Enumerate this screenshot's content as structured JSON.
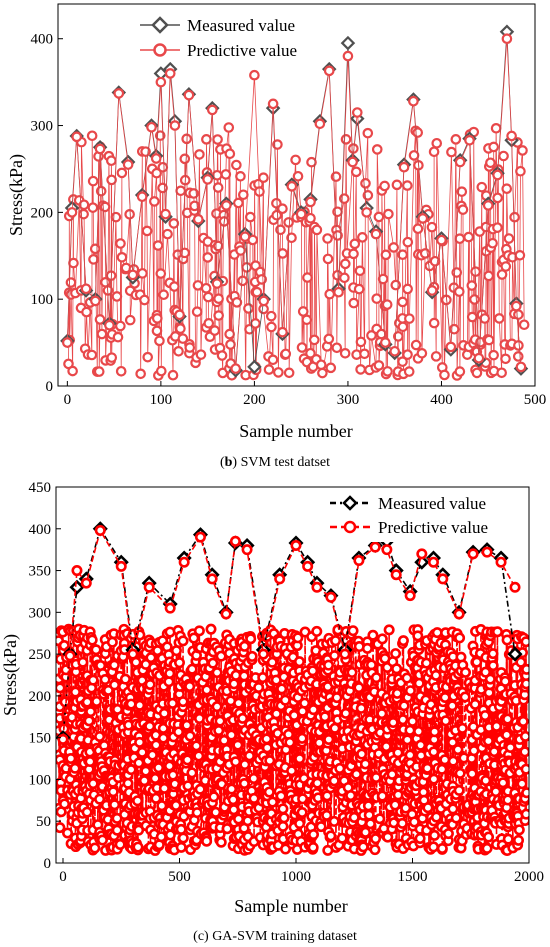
{
  "colors": {
    "measured_top": "#505050",
    "predictive_top": "#e8484a",
    "measured_bottom": "#000000",
    "predictive_bottom": "#ff0000"
  },
  "chart_data": [
    {
      "type": "line",
      "caption_prefix": "(",
      "caption_letter": "b",
      "caption_suffix": ") SVM test datset",
      "xlabel": "Sample number",
      "ylabel": "Stress(kPa)",
      "xlim": [
        -10,
        500
      ],
      "ylim": [
        0,
        440
      ],
      "xticks": [
        0,
        100,
        200,
        300,
        400,
        500
      ],
      "yticks": [
        0,
        100,
        200,
        300,
        400
      ],
      "legend_position": "top-left",
      "series": [
        {
          "name": "Measured value",
          "marker": "diamond",
          "x": [
            0,
            5,
            10,
            20,
            30,
            35,
            45,
            55,
            65,
            70,
            80,
            90,
            95,
            100,
            105,
            110,
            115,
            120,
            130,
            140,
            150,
            155,
            160,
            170,
            180,
            190,
            200,
            210,
            220,
            230,
            240,
            250,
            260,
            270,
            280,
            290,
            300,
            305,
            310,
            320,
            330,
            340,
            350,
            360,
            370,
            380,
            390,
            400,
            410,
            420,
            430,
            440,
            450,
            460,
            470,
            475,
            480,
            485
          ],
          "values": [
            52,
            205,
            288,
            110,
            100,
            275,
            72,
            338,
            258,
            125,
            220,
            300,
            265,
            360,
            195,
            365,
            305,
            80,
            336,
            190,
            240,
            320,
            120,
            210,
            18,
            175,
            22,
            100,
            320,
            60,
            232,
            200,
            215,
            305,
            365,
            112,
            395,
            260,
            308,
            205,
            178,
            48,
            38,
            255,
            330,
            195,
            108,
            170,
            42,
            260,
            285,
            30,
            210,
            245,
            408,
            283,
            95,
            20
          ]
        },
        {
          "name": "Predictive value",
          "marker": "circle",
          "x": [
            0,
            5,
            10,
            20,
            30,
            35,
            45,
            55,
            65,
            70,
            80,
            90,
            95,
            100,
            105,
            110,
            115,
            120,
            130,
            140,
            150,
            155,
            160,
            170,
            180,
            190,
            200,
            210,
            220,
            230,
            240,
            250,
            260,
            270,
            280,
            290,
            300,
            305,
            310,
            320,
            330,
            340,
            350,
            360,
            370,
            380,
            390,
            400,
            410,
            420,
            430,
            440,
            450,
            460,
            470,
            475,
            480,
            485
          ],
          "values": [
            50,
            200,
            287,
            112,
            98,
            273,
            70,
            337,
            255,
            128,
            218,
            298,
            262,
            350,
            198,
            360,
            300,
            82,
            335,
            192,
            238,
            318,
            118,
            208,
            20,
            172,
            358,
            98,
            325,
            62,
            230,
            198,
            212,
            302,
            363,
            108,
            380,
            258,
            315,
            200,
            175,
            50,
            40,
            252,
            328,
            193,
            110,
            168,
            45,
            258,
            283,
            32,
            208,
            243,
            400,
            288,
            92,
            22
          ]
        }
      ]
    },
    {
      "type": "line",
      "caption_text": "(c) GA-SVM training dataset",
      "xlabel": "Sample number",
      "ylabel": "Stress(kPa)",
      "xlim": [
        -30,
        2000
      ],
      "ylim": [
        0,
        450
      ],
      "xticks": [
        0,
        500,
        1000,
        1500,
        2000
      ],
      "yticks": [
        0,
        50,
        100,
        150,
        200,
        250,
        300,
        350,
        400,
        450
      ],
      "legend_position": "top-right",
      "series": [
        {
          "name": "Measured value",
          "marker": "diamond",
          "x": [
            0,
            30,
            60,
            100,
            160,
            250,
            300,
            370,
            460,
            520,
            590,
            640,
            700,
            740,
            790,
            860,
            930,
            1000,
            1050,
            1090,
            1150,
            1210,
            1270,
            1340,
            1390,
            1430,
            1490,
            1540,
            1590,
            1630,
            1700,
            1760,
            1820,
            1880,
            1940
          ],
          "values": [
            150,
            250,
            330,
            340,
            400,
            360,
            255,
            335,
            310,
            365,
            393,
            345,
            300,
            383,
            380,
            255,
            345,
            383,
            360,
            335,
            320,
            255,
            365,
            380,
            385,
            350,
            325,
            360,
            365,
            345,
            300,
            372,
            375,
            365,
            250
          ]
        },
        {
          "name": "Predictive value",
          "marker": "circle",
          "x": [
            0,
            30,
            60,
            100,
            160,
            250,
            300,
            370,
            460,
            520,
            590,
            640,
            700,
            740,
            790,
            860,
            930,
            1000,
            1050,
            1090,
            1150,
            1210,
            1270,
            1340,
            1390,
            1430,
            1490,
            1540,
            1590,
            1630,
            1700,
            1760,
            1820,
            1880,
            1940
          ],
          "values": [
            148,
            248,
            350,
            335,
            398,
            355,
            250,
            330,
            305,
            360,
            390,
            340,
            298,
            385,
            375,
            250,
            340,
            380,
            355,
            330,
            318,
            250,
            362,
            378,
            375,
            345,
            320,
            370,
            360,
            340,
            298,
            370,
            372,
            360,
            330
          ]
        }
      ]
    }
  ]
}
